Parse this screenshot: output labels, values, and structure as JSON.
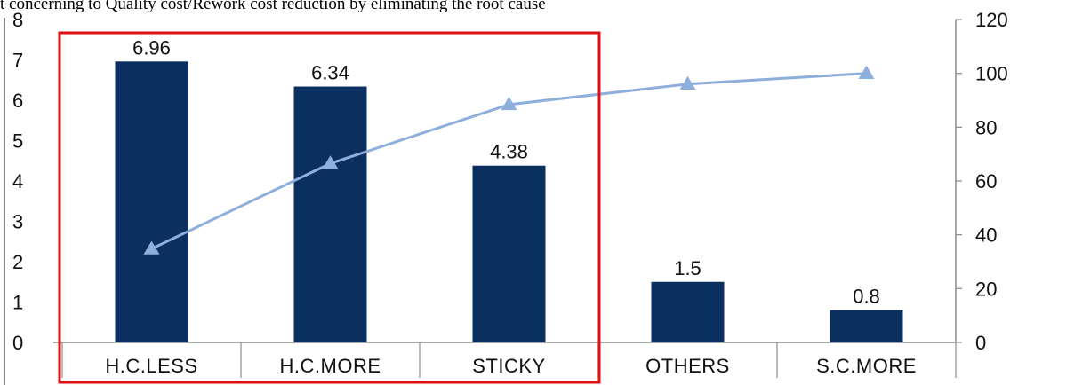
{
  "page": {
    "title": "t concerning to Quality cost/Rework cost reduction by eliminating the root cause"
  },
  "colors": {
    "bar": "#0b2f5e",
    "line": "#8eaedb",
    "highlight": "#dd1111",
    "axis": "#8c8c8c"
  },
  "chart_data": {
    "type": "bar",
    "categories": [
      "H.C.LESS",
      "H.C.MORE",
      "STICKY",
      "OTHERS",
      "S.C.MORE"
    ],
    "series": [
      {
        "values": [
          6.96,
          6.34,
          4.38,
          1.5,
          0.8
        ],
        "axis": "left",
        "kind": "bar"
      },
      {
        "values": [
          34.8,
          66.5,
          88.4,
          96,
          100
        ],
        "axis": "right",
        "kind": "line",
        "marker": "triangle"
      }
    ],
    "data_labels": [
      "6.96",
      "6.34",
      "4.38",
      "1.5",
      "0.8"
    ],
    "y_left": {
      "ylim": [
        0,
        8
      ],
      "ticks": [
        "0",
        "1",
        "2",
        "3",
        "4",
        "5",
        "6",
        "7",
        "8"
      ]
    },
    "y_right": {
      "ylim": [
        0,
        120
      ],
      "ticks": [
        "0",
        "20",
        "40",
        "60",
        "80",
        "100",
        "120"
      ]
    },
    "highlight_categories": [
      "H.C.LESS",
      "H.C.MORE",
      "STICKY"
    ],
    "grid": false,
    "legend": "none"
  }
}
